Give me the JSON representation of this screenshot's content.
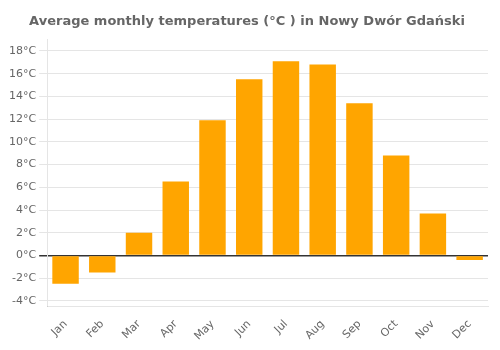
{
  "chart_data": {
    "type": "bar",
    "title": "Average monthly temperatures (°C ) in Nowy Dwór Gdański",
    "categories": [
      "Jan",
      "Feb",
      "Mar",
      "Apr",
      "May",
      "Jun",
      "Jul",
      "Aug",
      "Sep",
      "Oct",
      "Nov",
      "Dec"
    ],
    "values": [
      -2.5,
      -1.5,
      2.0,
      6.5,
      11.9,
      15.5,
      17.1,
      16.8,
      13.4,
      8.8,
      3.7,
      -0.4
    ],
    "color": "#FFA500",
    "ylim": [
      -4.5,
      19
    ],
    "yticks": [
      {
        "value": -4,
        "label": "-4°C"
      },
      {
        "value": -2,
        "label": "-2°C"
      },
      {
        "value": 0,
        "label": "0°C"
      },
      {
        "value": 2,
        "label": "2°C"
      },
      {
        "value": 4,
        "label": "4°C"
      },
      {
        "value": 6,
        "label": "6°C"
      },
      {
        "value": 8,
        "label": "8°C"
      },
      {
        "value": 10,
        "label": "10°C"
      },
      {
        "value": 12,
        "label": "12°C"
      },
      {
        "value": 14,
        "label": "14°C"
      },
      {
        "value": 16,
        "label": "16°C"
      },
      {
        "value": 18,
        "label": "18°C"
      }
    ],
    "grid": true
  }
}
